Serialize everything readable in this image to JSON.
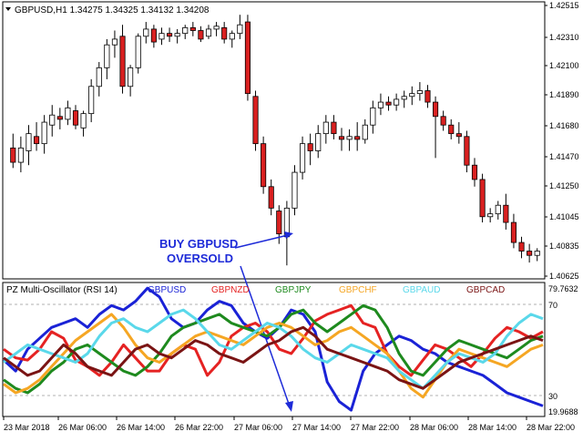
{
  "main_chart": {
    "title": "GBPUSD,H1  1.34275  1.34325  1.34132  1.34208",
    "price_labels": [
      "1.42515",
      "1.42310",
      "1.42100",
      "1.41890",
      "1.41680",
      "1.41470",
      "1.41250",
      "1.41045",
      "1.40835",
      "1.40625"
    ],
    "colors": {
      "bull": "#ffffff",
      "bear": "#d92020",
      "wick": "#000000"
    },
    "annotation": {
      "line1": "BUY GBPUSD",
      "line2": "OVERSOLD",
      "color": "#1e2bd8"
    }
  },
  "oscillator": {
    "title": "PZ Multi-Oscillator (RSI 14)",
    "levels": [
      "70",
      "30"
    ],
    "scale_top": "79.7632",
    "scale_bottom": "19.9688",
    "series": [
      {
        "name": "GBPUSD",
        "color": "#1a22d6"
      },
      {
        "name": "GBPNZD",
        "color": "#e52222"
      },
      {
        "name": "GBPJPY",
        "color": "#1e8a1e"
      },
      {
        "name": "GBPCHF",
        "color": "#f5a623"
      },
      {
        "name": "GBPAUD",
        "color": "#5ad8ea"
      },
      {
        "name": "GBPCAD",
        "color": "#7a1414"
      }
    ]
  },
  "time_axis": [
    "23 Mar 2018",
    "26 Mar 06:00",
    "26 Mar 14:00",
    "26 Mar 22:00",
    "27 Mar 06:00",
    "27 Mar 14:00",
    "27 Mar 22:00",
    "28 Mar 06:00",
    "28 Mar 14:00",
    "28 Mar 22:00"
  ],
  "chart_data": {
    "type": "candlestick",
    "ohlc": [
      [
        1.4152,
        1.4162,
        1.4138,
        1.4142
      ],
      [
        1.4142,
        1.416,
        1.4135,
        1.4152
      ],
      [
        1.415,
        1.4168,
        1.414,
        1.4162
      ],
      [
        1.416,
        1.417,
        1.415,
        1.4155
      ],
      [
        1.4155,
        1.4175,
        1.4148,
        1.417
      ],
      [
        1.4168,
        1.4182,
        1.416,
        1.4175
      ],
      [
        1.4174,
        1.418,
        1.4165,
        1.4172
      ],
      [
        1.4172,
        1.4185,
        1.4168,
        1.418
      ],
      [
        1.4178,
        1.4182,
        1.4165,
        1.4168
      ],
      [
        1.4166,
        1.4178,
        1.416,
        1.4176
      ],
      [
        1.4176,
        1.42,
        1.417,
        1.4195
      ],
      [
        1.4195,
        1.4212,
        1.4188,
        1.4208
      ],
      [
        1.4208,
        1.4228,
        1.42,
        1.4224
      ],
      [
        1.4224,
        1.4234,
        1.4215,
        1.4228
      ],
      [
        1.423,
        1.4238,
        1.419,
        1.4195
      ],
      [
        1.4195,
        1.421,
        1.4188,
        1.4208
      ],
      [
        1.4208,
        1.4232,
        1.4204,
        1.423
      ],
      [
        1.423,
        1.424,
        1.4225,
        1.4235
      ],
      [
        1.4235,
        1.4238,
        1.4222,
        1.4226
      ],
      [
        1.4228,
        1.4236,
        1.4224,
        1.4232
      ],
      [
        1.4232,
        1.4236,
        1.4226,
        1.423
      ],
      [
        1.423,
        1.4235,
        1.4225,
        1.4232
      ],
      [
        1.4232,
        1.4238,
        1.4228,
        1.4236
      ],
      [
        1.4236,
        1.424,
        1.423,
        1.4234
      ],
      [
        1.4234,
        1.4237,
        1.4226,
        1.4228
      ],
      [
        1.423,
        1.4238,
        1.4228,
        1.4235
      ],
      [
        1.4235,
        1.424,
        1.423,
        1.4237
      ],
      [
        1.4236,
        1.424,
        1.4225,
        1.4228
      ],
      [
        1.4228,
        1.4234,
        1.4222,
        1.4232
      ],
      [
        1.4232,
        1.4245,
        1.4228,
        1.4238
      ],
      [
        1.424,
        1.4245,
        1.4185,
        1.419
      ],
      [
        1.4188,
        1.4192,
        1.415,
        1.4155
      ],
      [
        1.4155,
        1.416,
        1.412,
        1.4125
      ],
      [
        1.4125,
        1.413,
        1.4105,
        1.411
      ],
      [
        1.4108,
        1.4112,
        1.4085,
        1.4092
      ],
      [
        1.409,
        1.4115,
        1.407,
        1.411
      ],
      [
        1.411,
        1.414,
        1.4105,
        1.4135
      ],
      [
        1.4135,
        1.416,
        1.413,
        1.4155
      ],
      [
        1.4155,
        1.4162,
        1.414,
        1.415
      ],
      [
        1.415,
        1.4168,
        1.4145,
        1.4162
      ],
      [
        1.4162,
        1.4175,
        1.4155,
        1.417
      ],
      [
        1.417,
        1.4175,
        1.4158,
        1.4162
      ],
      [
        1.416,
        1.4166,
        1.415,
        1.4158
      ],
      [
        1.4158,
        1.4165,
        1.415,
        1.416
      ],
      [
        1.416,
        1.417,
        1.415,
        1.4158
      ],
      [
        1.4158,
        1.4172,
        1.4155,
        1.4168
      ],
      [
        1.4168,
        1.4185,
        1.4162,
        1.418
      ],
      [
        1.418,
        1.419,
        1.4175,
        1.4184
      ],
      [
        1.4184,
        1.4188,
        1.4178,
        1.4182
      ],
      [
        1.4182,
        1.419,
        1.4178,
        1.4186
      ],
      [
        1.4186,
        1.4192,
        1.418,
        1.4188
      ],
      [
        1.4188,
        1.4195,
        1.4182,
        1.419
      ],
      [
        1.419,
        1.4198,
        1.4185,
        1.4192
      ],
      [
        1.4192,
        1.4196,
        1.418,
        1.4184
      ],
      [
        1.4184,
        1.4188,
        1.4145,
        1.4174
      ],
      [
        1.4174,
        1.4178,
        1.4164,
        1.4168
      ],
      [
        1.4168,
        1.4172,
        1.4158,
        1.4162
      ],
      [
        1.4162,
        1.417,
        1.4155,
        1.416
      ],
      [
        1.416,
        1.4164,
        1.4135,
        1.414
      ],
      [
        1.414,
        1.4145,
        1.4125,
        1.413
      ],
      [
        1.413,
        1.4134,
        1.41,
        1.4104
      ],
      [
        1.4104,
        1.411,
        1.41,
        1.4106
      ],
      [
        1.4106,
        1.4115,
        1.4102,
        1.4112
      ],
      [
        1.4112,
        1.412,
        1.4095,
        1.41
      ],
      [
        1.41,
        1.4106,
        1.4082,
        1.4086
      ],
      [
        1.4086,
        1.409,
        1.4075,
        1.408
      ],
      [
        1.408,
        1.4085,
        1.4072,
        1.4077
      ],
      [
        1.4077,
        1.4082,
        1.4073,
        1.408
      ]
    ],
    "y_range": [
      1.40625,
      1.42515
    ],
    "oscillator_series": [
      {
        "name": "GBPUSD",
        "values": [
          45,
          40,
          50,
          55,
          60,
          62,
          64,
          60,
          66,
          70,
          68,
          72,
          78,
          74,
          64,
          60,
          62,
          68,
          72,
          70,
          62,
          58,
          55,
          60,
          68,
          66,
          58,
          35,
          26,
          22,
          40,
          48,
          52,
          56,
          54,
          50,
          48,
          44,
          42,
          40,
          38,
          34,
          30,
          28,
          26,
          24
        ]
      },
      {
        "name": "GBPNZD",
        "values": [
          50,
          46,
          45,
          50,
          58,
          55,
          45,
          42,
          38,
          44,
          52,
          46,
          40,
          40,
          48,
          52,
          50,
          38,
          44,
          56,
          60,
          62,
          58,
          50,
          48,
          55,
          63,
          66,
          68,
          70,
          62,
          60,
          48,
          42,
          38,
          45,
          52,
          50,
          46,
          42,
          48,
          55,
          60,
          58,
          55,
          58
        ]
      },
      {
        "name": "GBPJPY",
        "values": [
          36,
          32,
          30,
          34,
          40,
          44,
          50,
          52,
          48,
          44,
          40,
          38,
          42,
          48,
          56,
          60,
          62,
          64,
          66,
          62,
          60,
          58,
          56,
          60,
          66,
          68,
          62,
          58,
          62,
          66,
          70,
          68,
          60,
          48,
          40,
          38,
          44,
          50,
          54,
          52,
          50,
          48,
          46,
          50,
          54,
          56
        ]
      },
      {
        "name": "GBPCHF",
        "values": [
          34,
          30,
          32,
          36,
          42,
          48,
          54,
          58,
          62,
          66,
          60,
          52,
          46,
          44,
          48,
          52,
          56,
          58,
          56,
          54,
          52,
          56,
          60,
          62,
          60,
          56,
          52,
          54,
          58,
          60,
          56,
          52,
          48,
          40,
          32,
          28,
          36,
          44,
          50,
          48,
          46,
          44,
          42,
          46,
          50,
          52
        ]
      },
      {
        "name": "GBPAUD",
        "values": [
          44,
          48,
          52,
          50,
          48,
          46,
          44,
          48,
          56,
          62,
          64,
          60,
          58,
          62,
          66,
          68,
          64,
          58,
          52,
          50,
          54,
          58,
          62,
          60,
          56,
          50,
          46,
          44,
          48,
          52,
          50,
          48,
          46,
          40,
          36,
          32,
          38,
          44,
          48,
          46,
          44,
          48,
          56,
          62,
          66,
          64
        ]
      },
      {
        "name": "GBPCAD",
        "values": [
          46,
          42,
          38,
          40,
          46,
          52,
          48,
          42,
          40,
          38,
          44,
          50,
          52,
          48,
          46,
          50,
          54,
          52,
          48,
          46,
          44,
          48,
          52,
          54,
          58,
          60,
          56,
          50,
          48,
          46,
          44,
          42,
          40,
          36,
          34,
          32,
          36,
          40,
          44,
          46,
          48,
          50,
          52,
          54,
          56,
          54
        ]
      }
    ],
    "oscillator_range": [
      19.9688,
      79.7632
    ]
  }
}
